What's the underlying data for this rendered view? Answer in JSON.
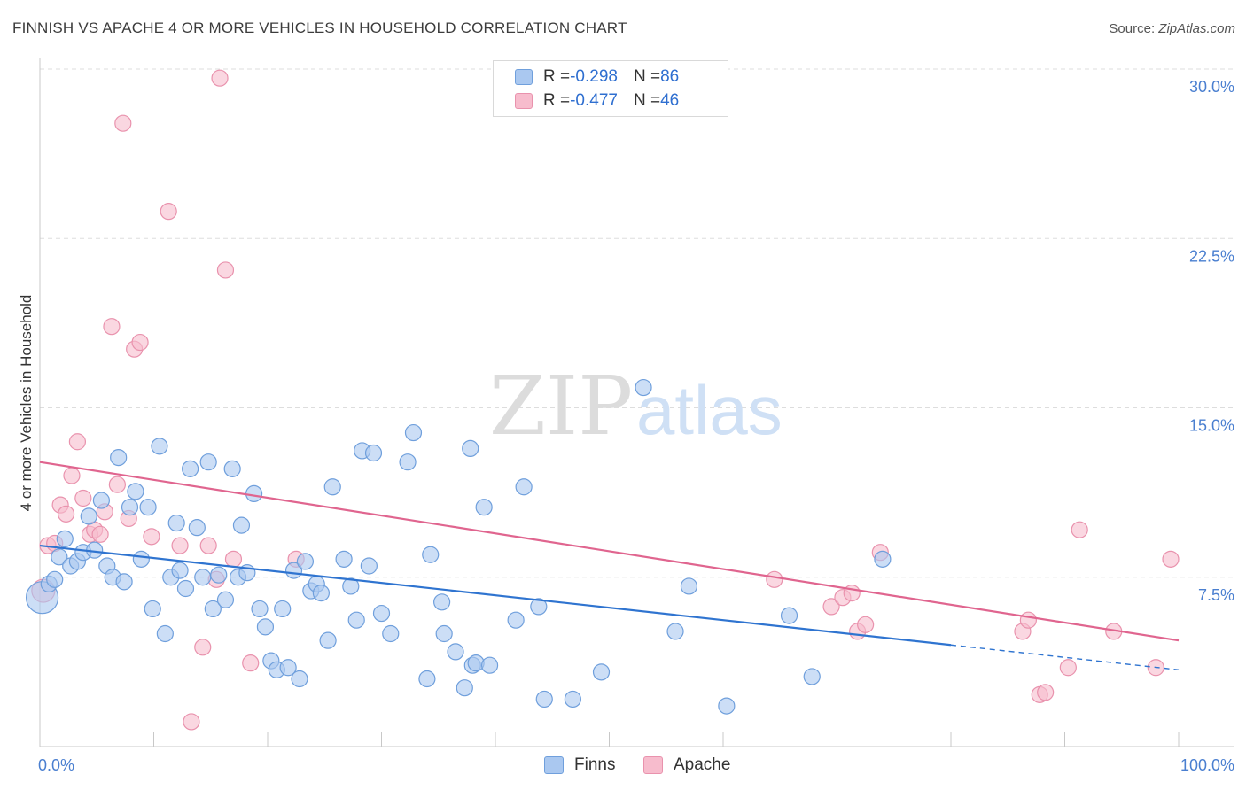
{
  "header": {
    "title": "FINNISH VS APACHE 4 OR MORE VEHICLES IN HOUSEHOLD CORRELATION CHART",
    "source_label": "Source: ",
    "source_value": "ZipAtlas.com"
  },
  "watermark": {
    "zip": "ZIP",
    "atlas": "atlas"
  },
  "legend": {
    "r_label": "R = ",
    "n_label": "N = ",
    "rows": [
      {
        "series": "Finns",
        "r": "-0.298",
        "n": "86",
        "color": "#aac8f0"
      },
      {
        "series": "Apache",
        "r": "-0.477",
        "n": "46",
        "color": "#f7bccd"
      }
    ]
  },
  "colors": {
    "finns_fill": "#aac8f0",
    "finns_stroke": "#6f9fdc",
    "finns_line": "#2f74d0",
    "apache_fill": "#f7bccd",
    "apache_stroke": "#e992ad",
    "apache_line": "#e0658f",
    "tick_label": "#4a7fd0",
    "grid": "#dddddd"
  },
  "chart_data": {
    "type": "scatter",
    "title": "FINNISH VS APACHE 4 OR MORE VEHICLES IN HOUSEHOLD CORRELATION CHART",
    "xlabel": "",
    "ylabel": "4 or more Vehicles in Household",
    "xlim": [
      0,
      100
    ],
    "ylim": [
      0,
      30
    ],
    "x_tick_labels": [
      "0.0%",
      "100.0%"
    ],
    "y_ticks": [
      7.5,
      15.0,
      22.5,
      30.0
    ],
    "y_tick_labels": [
      "7.5%",
      "15.0%",
      "22.5%",
      "30.0%"
    ],
    "grid": true,
    "legend_position": "top-center",
    "series": [
      {
        "name": "Finns",
        "trend": {
          "x": [
            0,
            80
          ],
          "y": [
            8.9,
            4.5
          ],
          "dashed_to": [
            100,
            3.4
          ]
        },
        "points": [
          [
            0.2,
            6.6
          ],
          [
            0.8,
            7.2
          ],
          [
            1.3,
            7.4
          ],
          [
            1.7,
            8.4
          ],
          [
            2.2,
            9.2
          ],
          [
            2.7,
            8.0
          ],
          [
            3.3,
            8.2
          ],
          [
            3.8,
            8.6
          ],
          [
            4.3,
            10.2
          ],
          [
            4.8,
            8.7
          ],
          [
            5.4,
            10.9
          ],
          [
            5.9,
            8.0
          ],
          [
            6.4,
            7.5
          ],
          [
            6.9,
            12.8
          ],
          [
            7.4,
            7.3
          ],
          [
            7.9,
            10.6
          ],
          [
            8.4,
            11.3
          ],
          [
            8.9,
            8.3
          ],
          [
            9.5,
            10.6
          ],
          [
            9.9,
            6.1
          ],
          [
            10.5,
            13.3
          ],
          [
            11.0,
            5.0
          ],
          [
            11.5,
            7.5
          ],
          [
            12.0,
            9.9
          ],
          [
            12.3,
            7.8
          ],
          [
            12.8,
            7.0
          ],
          [
            13.2,
            12.3
          ],
          [
            13.8,
            9.7
          ],
          [
            14.3,
            7.5
          ],
          [
            14.8,
            12.6
          ],
          [
            15.2,
            6.1
          ],
          [
            15.7,
            7.6
          ],
          [
            16.3,
            6.5
          ],
          [
            16.9,
            12.3
          ],
          [
            17.4,
            7.5
          ],
          [
            17.7,
            9.8
          ],
          [
            18.2,
            7.7
          ],
          [
            18.8,
            11.2
          ],
          [
            19.3,
            6.1
          ],
          [
            19.8,
            5.3
          ],
          [
            20.3,
            3.8
          ],
          [
            20.8,
            3.4
          ],
          [
            21.3,
            6.1
          ],
          [
            21.8,
            3.5
          ],
          [
            22.3,
            7.8
          ],
          [
            22.8,
            3.0
          ],
          [
            23.3,
            8.2
          ],
          [
            23.8,
            6.9
          ],
          [
            24.3,
            7.2
          ],
          [
            24.7,
            6.8
          ],
          [
            25.3,
            4.7
          ],
          [
            25.7,
            11.5
          ],
          [
            26.7,
            8.3
          ],
          [
            27.3,
            7.1
          ],
          [
            27.8,
            5.6
          ],
          [
            28.3,
            13.1
          ],
          [
            28.9,
            8.0
          ],
          [
            29.3,
            13.0
          ],
          [
            30.0,
            5.9
          ],
          [
            30.8,
            5.0
          ],
          [
            32.3,
            12.6
          ],
          [
            32.8,
            13.9
          ],
          [
            34.0,
            3.0
          ],
          [
            34.3,
            8.5
          ],
          [
            35.3,
            6.4
          ],
          [
            35.5,
            5.0
          ],
          [
            36.5,
            4.2
          ],
          [
            37.3,
            2.6
          ],
          [
            37.8,
            13.2
          ],
          [
            38.0,
            3.6
          ],
          [
            38.3,
            3.7
          ],
          [
            39.0,
            10.6
          ],
          [
            39.5,
            3.6
          ],
          [
            41.8,
            5.6
          ],
          [
            42.5,
            11.5
          ],
          [
            43.8,
            6.2
          ],
          [
            44.3,
            2.1
          ],
          [
            46.8,
            2.1
          ],
          [
            49.3,
            3.3
          ],
          [
            53.0,
            15.9
          ],
          [
            55.8,
            5.1
          ],
          [
            57.0,
            7.1
          ],
          [
            60.3,
            1.8
          ],
          [
            65.8,
            5.8
          ],
          [
            67.8,
            3.1
          ],
          [
            74.0,
            8.3
          ]
        ]
      },
      {
        "name": "Apache",
        "trend": {
          "x": [
            0,
            100
          ],
          "y": [
            12.6,
            4.7
          ]
        },
        "points": [
          [
            0.3,
            6.9
          ],
          [
            0.7,
            8.9
          ],
          [
            1.3,
            9.0
          ],
          [
            1.8,
            10.7
          ],
          [
            2.3,
            10.3
          ],
          [
            2.8,
            12.0
          ],
          [
            3.3,
            13.5
          ],
          [
            3.8,
            11.0
          ],
          [
            4.4,
            9.4
          ],
          [
            4.8,
            9.6
          ],
          [
            5.3,
            9.4
          ],
          [
            5.7,
            10.4
          ],
          [
            6.3,
            18.6
          ],
          [
            6.8,
            11.6
          ],
          [
            7.3,
            27.6
          ],
          [
            7.8,
            10.1
          ],
          [
            8.3,
            17.6
          ],
          [
            8.8,
            17.9
          ],
          [
            9.8,
            9.3
          ],
          [
            11.3,
            23.7
          ],
          [
            12.3,
            8.9
          ],
          [
            13.3,
            1.1
          ],
          [
            14.3,
            4.4
          ],
          [
            14.8,
            8.9
          ],
          [
            15.5,
            7.4
          ],
          [
            15.8,
            29.6
          ],
          [
            16.3,
            21.1
          ],
          [
            17.0,
            8.3
          ],
          [
            18.5,
            3.7
          ],
          [
            22.5,
            8.3
          ],
          [
            64.5,
            7.4
          ],
          [
            69.5,
            6.2
          ],
          [
            70.5,
            6.6
          ],
          [
            71.3,
            6.8
          ],
          [
            71.8,
            5.1
          ],
          [
            72.5,
            5.4
          ],
          [
            73.8,
            8.6
          ],
          [
            86.3,
            5.1
          ],
          [
            86.8,
            5.6
          ],
          [
            87.8,
            2.3
          ],
          [
            88.3,
            2.4
          ],
          [
            90.3,
            3.5
          ],
          [
            91.3,
            9.6
          ],
          [
            94.3,
            5.1
          ],
          [
            98.0,
            3.5
          ],
          [
            99.3,
            8.3
          ]
        ]
      }
    ]
  }
}
